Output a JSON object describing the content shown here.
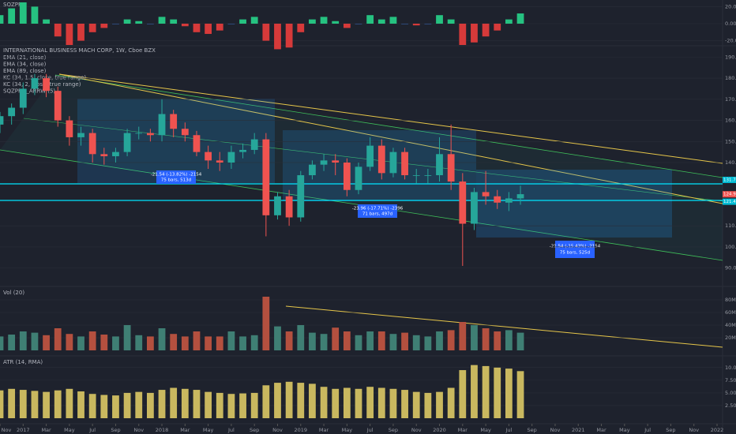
{
  "chart_data": [
    {
      "type": "histogram_osc",
      "title": "SQZPRO",
      "ylim": [
        -25,
        25
      ],
      "yticks": [
        {
          "value": 20,
          "label": "20.00"
        },
        {
          "value": 0,
          "label": "0.00"
        },
        {
          "value": -20,
          "label": "-20.00"
        }
      ],
      "up_color": "#26c281",
      "down_color": "#d63a3a",
      "flat_color": "#3b6fc4",
      "x": [
        "2016-11",
        "2016-12",
        "2017-01",
        "2017-02",
        "2017-03",
        "2017-04",
        "2017-05",
        "2017-06",
        "2017-07",
        "2017-08",
        "2017-09",
        "2017-10",
        "2017-11",
        "2017-12",
        "2018-01",
        "2018-02",
        "2018-03",
        "2018-04",
        "2018-05",
        "2018-06",
        "2018-07",
        "2018-08",
        "2018-09",
        "2018-10",
        "2018-11",
        "2018-12",
        "2019-01",
        "2019-02",
        "2019-03",
        "2019-04",
        "2019-05",
        "2019-06",
        "2019-07",
        "2019-08",
        "2019-09",
        "2019-10",
        "2019-11",
        "2019-12",
        "2020-01",
        "2020-02",
        "2020-03",
        "2020-04",
        "2020-05",
        "2020-06",
        "2020-07",
        "2020-08"
      ],
      "values": [
        10,
        18,
        25,
        20,
        5,
        -15,
        -25,
        -20,
        -10,
        -5,
        0,
        5,
        3,
        0,
        8,
        5,
        -3,
        -10,
        -12,
        -8,
        0,
        5,
        8,
        -20,
        -30,
        -28,
        -10,
        5,
        8,
        3,
        -5,
        0,
        10,
        5,
        8,
        0,
        -2,
        0,
        10,
        5,
        -25,
        -22,
        -15,
        -8,
        5,
        12
      ]
    },
    {
      "type": "candlestick",
      "title": "INTERNATIONAL BUSINESS MACH CORP, 1W, Cboe BZX",
      "legend": [
        "EMA (21, close)",
        "EMA (34, close)",
        "EMA (89, close)",
        "KC (34, 1.5, close, true range)",
        "KC (34, 2, close, true range)",
        "SQZPRO_ARRW (5)"
      ],
      "ylim": [
        85,
        195
      ],
      "yticks": [
        {
          "value": 190,
          "label": "190.00"
        },
        {
          "value": 180,
          "label": "180.00"
        },
        {
          "value": 170,
          "label": "170.00"
        },
        {
          "value": 160,
          "label": "160.00"
        },
        {
          "value": 150,
          "label": "150.00"
        },
        {
          "value": 140,
          "label": "140.00"
        },
        {
          "value": 110,
          "label": "110.00"
        },
        {
          "value": 100,
          "label": "100.00"
        },
        {
          "value": 90,
          "label": "90.00"
        }
      ],
      "price_labels": [
        {
          "value": 131.78,
          "label": "131.78",
          "color": "#00bcd4"
        },
        {
          "value": 124.96,
          "label": "124.96",
          "color": "#ef5350"
        },
        {
          "value": 121.44,
          "label": "121.44",
          "color": "#00bcd4"
        }
      ],
      "annotations": [
        [
          "-21.54 (-13.82%) -2154",
          "75 bars, 513d"
        ],
        [
          "-23.96 (-17.71%) -2396",
          "71 bars, 497d"
        ],
        [
          "-21.54 (-15.43%) -2154",
          "75 bars, 525d"
        ]
      ],
      "up_color": "#26a69a",
      "down_color": "#ef5350",
      "x": [
        "2016-11",
        "2016-12",
        "2017-01",
        "2017-02",
        "2017-03",
        "2017-04",
        "2017-05",
        "2017-06",
        "2017-07",
        "2017-08",
        "2017-09",
        "2017-10",
        "2017-11",
        "2017-12",
        "2018-01",
        "2018-02",
        "2018-03",
        "2018-04",
        "2018-05",
        "2018-06",
        "2018-07",
        "2018-08",
        "2018-09",
        "2018-10",
        "2018-11",
        "2018-12",
        "2019-01",
        "2019-02",
        "2019-03",
        "2019-04",
        "2019-05",
        "2019-06",
        "2019-07",
        "2019-08",
        "2019-09",
        "2019-10",
        "2019-11",
        "2019-12",
        "2020-01",
        "2020-02",
        "2020-03",
        "2020-04",
        "2020-05",
        "2020-06",
        "2020-07",
        "2020-08"
      ],
      "open": [
        158,
        162,
        166,
        175,
        180,
        174,
        160,
        152,
        154,
        144,
        143,
        145,
        154,
        154,
        153,
        163,
        156,
        153,
        145,
        141,
        140,
        145,
        146,
        151,
        115,
        124,
        114,
        134,
        139,
        141,
        140,
        127,
        138,
        148,
        135,
        145,
        134,
        134,
        134,
        144,
        131,
        111,
        126,
        124,
        121,
        123
      ],
      "high": [
        164,
        168,
        178,
        182,
        182,
        176,
        162,
        157,
        156,
        147,
        147,
        156,
        157,
        156,
        170,
        165,
        159,
        155,
        148,
        145,
        148,
        149,
        154,
        154,
        126,
        127,
        136,
        141,
        144,
        144,
        142,
        140,
        152,
        151,
        147,
        147,
        137,
        137,
        152,
        158,
        135,
        128,
        136,
        127,
        126,
        129
      ],
      "low": [
        154,
        158,
        163,
        172,
        171,
        157,
        148,
        148,
        140,
        139,
        140,
        143,
        151,
        150,
        150,
        152,
        150,
        143,
        137,
        136,
        137,
        142,
        144,
        105,
        113,
        110,
        112,
        132,
        136,
        134,
        124,
        125,
        136,
        132,
        133,
        132,
        130,
        130,
        131,
        127,
        91,
        108,
        120,
        118,
        117,
        120
      ],
      "close": [
        162,
        166,
        175,
        180,
        174,
        160,
        152,
        154,
        144,
        143,
        145,
        154,
        154,
        153,
        163,
        156,
        153,
        145,
        141,
        140,
        145,
        146,
        151,
        115,
        124,
        114,
        134,
        139,
        141,
        140,
        127,
        138,
        148,
        135,
        145,
        134,
        134,
        134,
        144,
        131,
        111,
        126,
        124,
        121,
        123,
        125
      ],
      "xticks": [
        {
          "value": "2016-11",
          "label": "Nov"
        },
        {
          "value": "2017-01",
          "label": "2017"
        },
        {
          "value": "2017-03",
          "label": "Mar"
        },
        {
          "value": "2017-05",
          "label": "May"
        },
        {
          "value": "2017-07",
          "label": "Jul"
        },
        {
          "value": "2017-09",
          "label": "Sep"
        },
        {
          "value": "2017-11",
          "label": "Nov"
        },
        {
          "value": "2018-01",
          "label": "2018"
        },
        {
          "value": "2018-03",
          "label": "Mar"
        },
        {
          "value": "2018-05",
          "label": "May"
        },
        {
          "value": "2018-07",
          "label": "Jul"
        },
        {
          "value": "2018-09",
          "label": "Sep"
        },
        {
          "value": "2018-11",
          "label": "Nov"
        },
        {
          "value": "2019-01",
          "label": "2019"
        },
        {
          "value": "2019-03",
          "label": "Mar"
        },
        {
          "value": "2019-05",
          "label": "May"
        },
        {
          "value": "2019-07",
          "label": "Jul"
        },
        {
          "value": "2019-09",
          "label": "Sep"
        },
        {
          "value": "2019-11",
          "label": "Nov"
        },
        {
          "value": "2020-01",
          "label": "2020"
        },
        {
          "value": "2020-03",
          "label": "Mar"
        },
        {
          "value": "2020-05",
          "label": "May"
        },
        {
          "value": "2020-07",
          "label": "Jul"
        },
        {
          "value": "2020-09",
          "label": "Sep"
        },
        {
          "value": "2020-11",
          "label": "Nov"
        },
        {
          "value": "2021-01",
          "label": "2021"
        },
        {
          "value": "2021-03",
          "label": "Mar"
        },
        {
          "value": "2021-05",
          "label": "May"
        },
        {
          "value": "2021-07",
          "label": "Jul"
        },
        {
          "value": "2021-09",
          "label": "Sep"
        },
        {
          "value": "2021-11",
          "label": "Nov"
        },
        {
          "value": "2022-01",
          "label": "2022"
        }
      ],
      "xlim": [
        "2016-11",
        "2022-01"
      ]
    },
    {
      "type": "bar",
      "title": "Vol (20)",
      "ylim": [
        0,
        100
      ],
      "yticks": [
        {
          "value": 80,
          "label": "80M"
        },
        {
          "value": 60,
          "label": "60M"
        },
        {
          "value": 40,
          "label": "40M"
        },
        {
          "value": 20,
          "label": "20M"
        }
      ],
      "up_color": "#3f7f74",
      "down_color": "#b4503f",
      "x": [
        "2016-11",
        "2016-12",
        "2017-01",
        "2017-02",
        "2017-03",
        "2017-04",
        "2017-05",
        "2017-06",
        "2017-07",
        "2017-08",
        "2017-09",
        "2017-10",
        "2017-11",
        "2017-12",
        "2018-01",
        "2018-02",
        "2018-03",
        "2018-04",
        "2018-05",
        "2018-06",
        "2018-07",
        "2018-08",
        "2018-09",
        "2018-10",
        "2018-11",
        "2018-12",
        "2019-01",
        "2019-02",
        "2019-03",
        "2019-04",
        "2019-05",
        "2019-06",
        "2019-07",
        "2019-08",
        "2019-09",
        "2019-10",
        "2019-11",
        "2019-12",
        "2020-01",
        "2020-02",
        "2020-03",
        "2020-04",
        "2020-05",
        "2020-06",
        "2020-07",
        "2020-08"
      ],
      "values": [
        22,
        25,
        30,
        28,
        24,
        35,
        26,
        22,
        30,
        25,
        22,
        40,
        24,
        22,
        35,
        26,
        22,
        30,
        22,
        22,
        30,
        22,
        24,
        85,
        38,
        30,
        40,
        28,
        26,
        36,
        30,
        24,
        30,
        30,
        26,
        28,
        24,
        22,
        30,
        32,
        45,
        40,
        35,
        30,
        32,
        28
      ]
    },
    {
      "type": "bar",
      "title": "ATR (14, RMA)",
      "ylim": [
        0,
        12
      ],
      "yticks": [
        {
          "value": 10,
          "label": "10.00"
        },
        {
          "value": 7.5,
          "label": "7.50"
        },
        {
          "value": 5,
          "label": "5.00"
        },
        {
          "value": 2.5,
          "label": "2.50"
        }
      ],
      "color": "#c9b85f",
      "x": [
        "2016-11",
        "2016-12",
        "2017-01",
        "2017-02",
        "2017-03",
        "2017-04",
        "2017-05",
        "2017-06",
        "2017-07",
        "2017-08",
        "2017-09",
        "2017-10",
        "2017-11",
        "2017-12",
        "2018-01",
        "2018-02",
        "2018-03",
        "2018-04",
        "2018-05",
        "2018-06",
        "2018-07",
        "2018-08",
        "2018-09",
        "2018-10",
        "2018-11",
        "2018-12",
        "2019-01",
        "2019-02",
        "2019-03",
        "2019-04",
        "2019-05",
        "2019-06",
        "2019-07",
        "2019-08",
        "2019-09",
        "2019-10",
        "2019-11",
        "2019-12",
        "2020-01",
        "2020-02",
        "2020-03",
        "2020-04",
        "2020-05",
        "2020-06",
        "2020-07",
        "2020-08"
      ],
      "values": [
        5.5,
        5.8,
        5.6,
        5.4,
        5.2,
        5.5,
        5.8,
        5.3,
        4.8,
        4.6,
        4.5,
        5.0,
        5.2,
        5.0,
        5.6,
        6.0,
        5.8,
        5.6,
        5.2,
        5.0,
        4.8,
        4.9,
        5.0,
        6.5,
        7.0,
        7.2,
        7.0,
        6.8,
        6.2,
        5.8,
        6.0,
        5.8,
        6.2,
        6.0,
        5.8,
        5.6,
        5.2,
        5.0,
        5.2,
        6.0,
        9.5,
        10.5,
        10.3,
        10.0,
        9.8,
        9.3
      ]
    }
  ]
}
